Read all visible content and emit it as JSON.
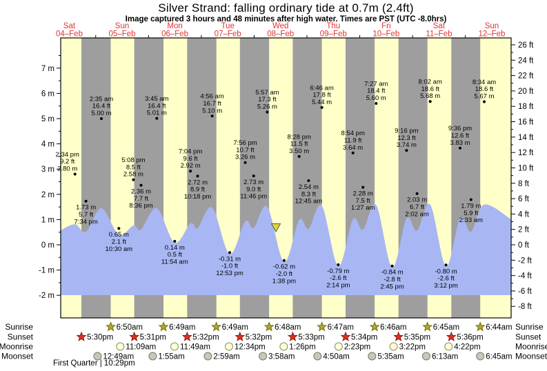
{
  "title": "Silver Strand: falling  ordinary tide at 0.7m (2.4ft)",
  "subtitle": "Image captured 3 hours and 48 minutes after high water. Times are PST (UTC -8.0hrs)",
  "chart_data": {
    "type": "area",
    "title": "Silver Strand: falling  ordinary tide at 0.7m (2.4ft)",
    "subtitle": "Image captured 3 hours and 48 minutes after high water. Times are PST (UTC -8.0hrs)",
    "ylabel_left_unit": "m",
    "ylabel_right_unit": "ft",
    "ylim_m": [
      -2.5,
      8.1
    ],
    "axis_left_ticks": [
      {
        "v": 7,
        "label": "7 m"
      },
      {
        "v": 6,
        "label": "6 m"
      },
      {
        "v": 5,
        "label": "5 m"
      },
      {
        "v": 4,
        "label": "4 m"
      },
      {
        "v": 3,
        "label": "3 m"
      },
      {
        "v": 2,
        "label": "2 m"
      },
      {
        "v": 1,
        "label": "1 m"
      },
      {
        "v": 0,
        "label": "0 m"
      },
      {
        "v": -1,
        "label": "-1 m"
      },
      {
        "v": -2,
        "label": "-2 m"
      }
    ],
    "axis_right_ticks": [
      {
        "v": 26,
        "label": "26 ft"
      },
      {
        "v": 24,
        "label": "24 ft"
      },
      {
        "v": 22,
        "label": "22 ft"
      },
      {
        "v": 20,
        "label": "20 ft"
      },
      {
        "v": 18,
        "label": "18 ft"
      },
      {
        "v": 16,
        "label": "16 ft"
      },
      {
        "v": 14,
        "label": "14 ft"
      },
      {
        "v": 12,
        "label": "12 ft"
      },
      {
        "v": 10,
        "label": "10 ft"
      },
      {
        "v": 8,
        "label": "8 ft"
      },
      {
        "v": 6,
        "label": "6 ft"
      },
      {
        "v": 4,
        "label": "4 ft"
      },
      {
        "v": 2,
        "label": "2 ft"
      },
      {
        "v": 0,
        "label": "0 ft"
      },
      {
        "v": -2,
        "label": "-2 ft"
      },
      {
        "v": -4,
        "label": "-4 ft"
      },
      {
        "v": -6,
        "label": "-6 ft"
      },
      {
        "v": -8,
        "label": "-8 ft"
      }
    ],
    "days": [
      {
        "name": "Sat",
        "date": "04–Feb"
      },
      {
        "name": "Sun",
        "date": "05–Feb"
      },
      {
        "name": "Mon",
        "date": "06–Feb"
      },
      {
        "name": "Tue",
        "date": "07–Feb"
      },
      {
        "name": "Wed",
        "date": "08–Feb"
      },
      {
        "name": "Thu",
        "date": "09–Feb"
      },
      {
        "name": "Fri",
        "date": "10–Feb"
      },
      {
        "name": "Sat",
        "date": "11–Feb"
      },
      {
        "name": "Sun",
        "date": "12–Feb"
      }
    ],
    "tide_events": [
      {
        "day": 0,
        "type": "high",
        "time": "2:34 pm",
        "ft_label": "9.2 ft",
        "m_label": "2.80 m",
        "height_m": 2.8
      },
      {
        "day": 0,
        "type": "low",
        "time": "7:34 pm",
        "ft_label": "5.7 ft",
        "m_label": "1.73 m",
        "height_m": 1.73
      },
      {
        "day": 1,
        "type": "high",
        "time": "2:35 am",
        "ft_label": "16.4 ft",
        "m_label": "5.00 m",
        "height_m": 5.0
      },
      {
        "day": 1,
        "type": "low",
        "time": "10:30 am",
        "ft_label": "2.1 ft",
        "m_label": "0.65 m",
        "height_m": 0.65
      },
      {
        "day": 1,
        "type": "high",
        "time": "5:08 pm",
        "ft_label": "8.5 ft",
        "m_label": "2.58 m",
        "height_m": 2.58
      },
      {
        "day": 1,
        "type": "low",
        "time": "8:36 pm",
        "ft_label": "7.7 ft",
        "m_label": "2.36 m",
        "height_m": 2.36
      },
      {
        "day": 2,
        "type": "high",
        "time": "3:45 am",
        "ft_label": "16.4 ft",
        "m_label": "5.01 m",
        "height_m": 5.01
      },
      {
        "day": 2,
        "type": "low",
        "time": "11:54 am",
        "ft_label": "0.5 ft",
        "m_label": "0.14 m",
        "height_m": 0.14
      },
      {
        "day": 2,
        "type": "high",
        "time": "7:04 pm",
        "ft_label": "9.6 ft",
        "m_label": "2.92 m",
        "height_m": 2.92
      },
      {
        "day": 2,
        "type": "low",
        "time": "10:18 pm",
        "ft_label": "8.9 ft",
        "m_label": "2.72 m",
        "height_m": 2.72
      },
      {
        "day": 3,
        "type": "high",
        "time": "4:56 am",
        "ft_label": "16.7 ft",
        "m_label": "5.10 m",
        "height_m": 5.1
      },
      {
        "day": 3,
        "type": "low",
        "time": "12:53 pm",
        "ft_label": "-1.0 ft",
        "m_label": "-0.31 m",
        "height_m": -0.31
      },
      {
        "day": 3,
        "type": "high",
        "time": "7:56 pm",
        "ft_label": "10.7 ft",
        "m_label": "3.26 m",
        "height_m": 3.26
      },
      {
        "day": 3,
        "type": "low",
        "time": "11:46 pm",
        "ft_label": "9.0 ft",
        "m_label": "2.73 m",
        "height_m": 2.73
      },
      {
        "day": 4,
        "type": "high",
        "time": "5:57 am",
        "ft_label": "17.3 ft",
        "m_label": "5.26 m",
        "height_m": 5.26
      },
      {
        "day": 4,
        "type": "low",
        "time": "1:38 pm",
        "ft_label": "-2.0 ft",
        "m_label": "-0.62 m",
        "height_m": -0.62
      },
      {
        "day": 4,
        "type": "high",
        "time": "8:28 pm",
        "ft_label": "11.5 ft",
        "m_label": "3.50 m",
        "height_m": 3.5
      },
      {
        "day": 5,
        "type": "low",
        "time": "12:45 am",
        "ft_label": "8.3 ft",
        "m_label": "2.54 m",
        "height_m": 2.54
      },
      {
        "day": 5,
        "type": "high",
        "time": "6:46 am",
        "ft_label": "17.8 ft",
        "m_label": "5.44 m",
        "height_m": 5.44
      },
      {
        "day": 5,
        "type": "low",
        "time": "2:14 pm",
        "ft_label": "-2.6 ft",
        "m_label": "-0.79 m",
        "height_m": -0.79
      },
      {
        "day": 5,
        "type": "high",
        "time": "8:54 pm",
        "ft_label": "11.9 ft",
        "m_label": "3.64 m",
        "height_m": 3.64
      },
      {
        "day": 6,
        "type": "low",
        "time": "1:27 am",
        "ft_label": "7.5 ft",
        "m_label": "2.28 m",
        "height_m": 2.28
      },
      {
        "day": 6,
        "type": "high",
        "time": "7:27 am",
        "ft_label": "18.4 ft",
        "m_label": "5.60 m",
        "height_m": 5.6
      },
      {
        "day": 6,
        "type": "low",
        "time": "2:45 pm",
        "ft_label": "-2.8 ft",
        "m_label": "-0.84 m",
        "height_m": -0.84
      },
      {
        "day": 6,
        "type": "high",
        "time": "9:16 pm",
        "ft_label": "12.3 ft",
        "m_label": "3.74 m",
        "height_m": 3.74
      },
      {
        "day": 7,
        "type": "low",
        "time": "2:02 am",
        "ft_label": "6.7 ft",
        "m_label": "2.03 m",
        "height_m": 2.03
      },
      {
        "day": 7,
        "type": "high",
        "time": "8:02 am",
        "ft_label": "18.6 ft",
        "m_label": "5.68 m",
        "height_m": 5.68
      },
      {
        "day": 7,
        "type": "low",
        "time": "3:12 pm",
        "ft_label": "-2.6 ft",
        "m_label": "-0.80 m",
        "height_m": -0.8
      },
      {
        "day": 7,
        "type": "high",
        "time": "9:36 pm",
        "ft_label": "12.6 ft",
        "m_label": "3.83 m",
        "height_m": 3.83
      },
      {
        "day": 8,
        "type": "low",
        "time": "2:33 am",
        "ft_label": "5.9 ft",
        "m_label": "1.79 m",
        "height_m": 1.79
      },
      {
        "day": 8,
        "type": "high",
        "time": "8:34 am",
        "ft_label": "18.6 ft",
        "m_label": "5.67 m",
        "height_m": 5.67
      }
    ],
    "sun_moon_rows": [
      {
        "id": "sunrise",
        "label": "Sunrise",
        "icon": "sunrise-star",
        "entries": [
          {
            "day": 1,
            "time": "6:50am"
          },
          {
            "day": 2,
            "time": "6:49am"
          },
          {
            "day": 3,
            "time": "6:49am"
          },
          {
            "day": 4,
            "time": "6:48am"
          },
          {
            "day": 5,
            "time": "6:47am"
          },
          {
            "day": 6,
            "time": "6:46am"
          },
          {
            "day": 7,
            "time": "6:45am"
          },
          {
            "day": 8,
            "time": "6:44am"
          }
        ]
      },
      {
        "id": "sunset",
        "label": "Sunset",
        "icon": "sunset-star",
        "entries": [
          {
            "day": 0,
            "time": "5:30pm"
          },
          {
            "day": 1,
            "time": "5:31pm"
          },
          {
            "day": 2,
            "time": "5:32pm"
          },
          {
            "day": 3,
            "time": "5:32pm"
          },
          {
            "day": 4,
            "time": "5:33pm"
          },
          {
            "day": 5,
            "time": "5:34pm"
          },
          {
            "day": 6,
            "time": "5:35pm"
          },
          {
            "day": 7,
            "time": "5:36pm"
          }
        ]
      },
      {
        "id": "moonrise",
        "label": "Moonrise",
        "icon": "moonrise-circle",
        "entries": [
          {
            "day": 1,
            "time": "11:09am"
          },
          {
            "day": 2,
            "time": "11:49am"
          },
          {
            "day": 3,
            "time": "12:34pm"
          },
          {
            "day": 4,
            "time": "1:26pm"
          },
          {
            "day": 5,
            "time": "2:23pm"
          },
          {
            "day": 6,
            "time": "3:22pm"
          },
          {
            "day": 7,
            "time": "4:22pm"
          }
        ]
      },
      {
        "id": "moonset",
        "label": "Moonset",
        "icon": "moonset-circle",
        "entries": [
          {
            "day": 1,
            "time": "12:49am"
          },
          {
            "day": 2,
            "time": "1:55am"
          },
          {
            "day": 3,
            "time": "2:59am"
          },
          {
            "day": 4,
            "time": "3:58am"
          },
          {
            "day": 5,
            "time": "4:50am"
          },
          {
            "day": 6,
            "time": "5:35am"
          },
          {
            "day": 7,
            "time": "6:13am"
          },
          {
            "day": 8,
            "time": "6:45am"
          }
        ]
      }
    ],
    "moon_phase": "First Quarter | 10:29pm",
    "colors": {
      "day_band": "#ffffc9",
      "night_band": "#9e9e9e",
      "tide_fill": "#a8b7f3",
      "day_label_red": "#e43030",
      "sunrise_star": "#b2a62b",
      "sunset_star": "#dd3020",
      "moonrise_circle": "#ffffd6",
      "moonset_circle": "#c7c7ba",
      "marker_triangle": "#d8d838"
    }
  }
}
